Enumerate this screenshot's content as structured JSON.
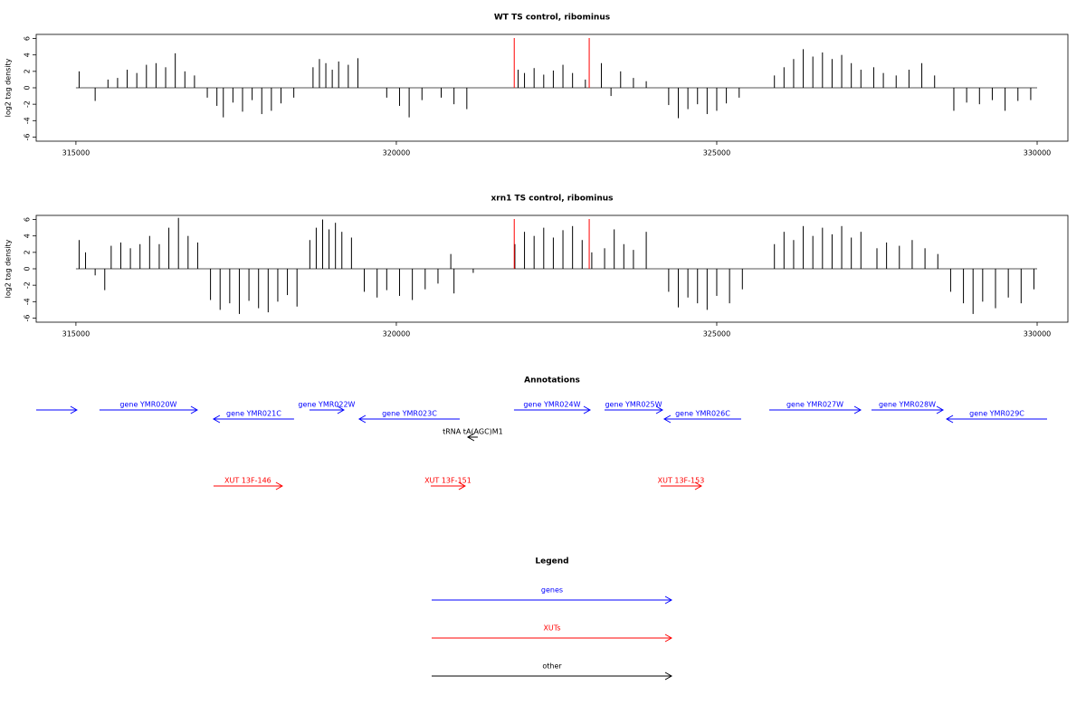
{
  "chart_data": [
    {
      "type": "needle",
      "title": "WT TS control, ribominus",
      "ylabel": "log2 tag density",
      "xlim": [
        314380,
        330480
      ],
      "xticks": [
        315000,
        320000,
        325000,
        330000
      ],
      "ylim": [
        -6.5,
        6.5
      ],
      "yticks": [
        -6,
        -4,
        -2,
        0,
        2,
        4,
        6
      ],
      "color": "#000000",
      "vlines": [
        321840,
        323010
      ],
      "vline_color": "#ff0000",
      "x": [
        315050,
        315300,
        315500,
        315650,
        315800,
        315950,
        316100,
        316250,
        316400,
        316550,
        316700,
        316850,
        317050,
        317200,
        317300,
        317450,
        317600,
        317750,
        317900,
        318050,
        318200,
        318400,
        318700,
        318800,
        318900,
        319000,
        319100,
        319250,
        319400,
        319850,
        320050,
        320200,
        320400,
        320700,
        320900,
        321100,
        321900,
        322000,
        322150,
        322300,
        322450,
        322600,
        322750,
        322950,
        323200,
        323350,
        323500,
        323700,
        323900,
        324250,
        324400,
        324550,
        324700,
        324850,
        325000,
        325150,
        325350,
        325900,
        326050,
        326200,
        326350,
        326500,
        326650,
        326800,
        326950,
        327100,
        327250,
        327450,
        327600,
        327800,
        328000,
        328200,
        328400,
        328700,
        328900,
        329100,
        329300,
        329500,
        329700,
        329900
      ],
      "values": [
        2.0,
        -1.6,
        1.0,
        1.2,
        2.2,
        1.8,
        2.8,
        3.0,
        2.5,
        4.2,
        2.0,
        1.5,
        -1.2,
        -2.2,
        -3.6,
        -1.8,
        -2.9,
        -1.5,
        -3.2,
        -2.8,
        -1.9,
        -1.2,
        2.5,
        3.5,
        3.0,
        2.2,
        3.2,
        2.8,
        3.6,
        -1.2,
        -2.2,
        -3.6,
        -1.5,
        -1.2,
        -2.0,
        -2.6,
        2.2,
        1.8,
        2.4,
        1.6,
        2.1,
        2.8,
        1.8,
        1.0,
        3.0,
        -1.0,
        2.0,
        1.2,
        0.8,
        -2.1,
        -3.7,
        -2.6,
        -2.0,
        -3.2,
        -2.8,
        -1.9,
        -1.2,
        1.5,
        2.5,
        3.5,
        4.7,
        3.8,
        4.3,
        3.5,
        4.0,
        3.0,
        2.2,
        2.5,
        1.8,
        1.5,
        2.2,
        3.0,
        1.5,
        -2.8,
        -1.8,
        -2.0,
        -1.5,
        -2.8,
        -1.6,
        -1.5
      ]
    },
    {
      "type": "needle",
      "title": "xrn1 TS control, ribominus",
      "ylabel": "log2 tag density",
      "xlim": [
        314380,
        330480
      ],
      "xticks": [
        315000,
        320000,
        325000,
        330000
      ],
      "ylim": [
        -6.5,
        6.5
      ],
      "yticks": [
        -6,
        -4,
        -2,
        0,
        2,
        4,
        6
      ],
      "color": "#000000",
      "vlines": [
        321840,
        323010
      ],
      "vline_color": "#ff0000",
      "x": [
        315050,
        315150,
        315300,
        315450,
        315550,
        315700,
        315850,
        316000,
        316150,
        316300,
        316450,
        316600,
        316750,
        316900,
        317100,
        317250,
        317400,
        317550,
        317700,
        317850,
        318000,
        318150,
        318300,
        318450,
        318650,
        318750,
        318850,
        318950,
        319050,
        319150,
        319300,
        319500,
        319700,
        319850,
        320050,
        320250,
        320450,
        320650,
        320850,
        320900,
        321200,
        321850,
        322000,
        322150,
        322300,
        322450,
        322600,
        322750,
        322900,
        323050,
        323250,
        323400,
        323550,
        323700,
        323900,
        324250,
        324400,
        324550,
        324700,
        324850,
        325000,
        325200,
        325400,
        325900,
        326050,
        326200,
        326350,
        326500,
        326650,
        326800,
        326950,
        327100,
        327250,
        327500,
        327650,
        327850,
        328050,
        328250,
        328450,
        328650,
        328850,
        329000,
        329150,
        329350,
        329550,
        329750,
        329950
      ],
      "values": [
        3.5,
        2.0,
        -0.8,
        -2.6,
        2.8,
        3.2,
        2.5,
        3.0,
        4.0,
        3.0,
        5.0,
        6.2,
        4.0,
        3.2,
        -3.8,
        -5.0,
        -4.2,
        -5.5,
        -3.9,
        -4.8,
        -5.3,
        -4.0,
        -3.2,
        -4.6,
        3.5,
        5.0,
        6.0,
        4.8,
        5.6,
        4.5,
        3.8,
        -2.8,
        -3.5,
        -2.6,
        -3.3,
        -3.8,
        -2.5,
        -1.8,
        1.8,
        -3.0,
        -0.5,
        3.0,
        4.5,
        4.0,
        5.0,
        3.8,
        4.7,
        5.2,
        3.5,
        2.0,
        2.5,
        4.8,
        3.0,
        2.3,
        4.5,
        -2.8,
        -4.7,
        -3.5,
        -4.2,
        -5.0,
        -3.3,
        -4.2,
        -2.5,
        3.0,
        4.5,
        3.5,
        5.2,
        4.0,
        5.0,
        4.2,
        5.2,
        3.8,
        4.5,
        2.5,
        3.2,
        2.8,
        3.5,
        2.5,
        1.8,
        -2.8,
        -4.2,
        -5.5,
        -4.0,
        -4.8,
        -3.5,
        -4.2,
        -2.5
      ]
    }
  ],
  "annotations": {
    "title": "Annotations",
    "groups": [
      {
        "features": [
          {
            "label": null,
            "start": 314380,
            "end": 315014,
            "strand": "+"
          },
          {
            "label": "gene YMR020W",
            "start": 315367,
            "end": 316893,
            "strand": "+"
          },
          {
            "label": "gene YMR021C",
            "start": 317147,
            "end": 318404,
            "strand": "-"
          },
          {
            "label": "gene YMR022W",
            "start": 318644,
            "end": 319181,
            "strand": "+"
          },
          {
            "label": "gene YMR023C",
            "start": 319421,
            "end": 320989,
            "strand": "-"
          },
          {
            "label": "gene YMR024W",
            "start": 321836,
            "end": 323023,
            "strand": "+"
          },
          {
            "label": "gene YMR025W",
            "start": 323249,
            "end": 324153,
            "strand": "+"
          },
          {
            "label": "gene YMR026C",
            "start": 324181,
            "end": 325381,
            "strand": "-"
          },
          {
            "label": "gene YMR027W",
            "start": 325819,
            "end": 327246,
            "strand": "+"
          },
          {
            "label": "gene YMR028W",
            "start": 327415,
            "end": 328531,
            "strand": "+"
          },
          {
            "label": "gene YMR029C",
            "start": 328588,
            "end": 330155,
            "strand": "-"
          }
        ]
      },
      {
        "features": [
          {
            "label": "XUT 13F-146",
            "start": 317147,
            "end": 318220,
            "strand": "+"
          },
          {
            "label": "XUT 13F-151",
            "start": 320537,
            "end": 321073,
            "strand": "+"
          },
          {
            "label": "XUT 13F-153",
            "start": 324124,
            "end": 324760,
            "strand": "+"
          }
        ]
      },
      {
        "features": [
          {
            "label": "tRNA tA(AGC)M1",
            "start": 321116,
            "end": 321271,
            "strand": "-"
          }
        ]
      }
    ]
  },
  "legend": {
    "title": "Legend",
    "entries": [
      {
        "label": "genes",
        "color": "#0000ff"
      },
      {
        "label": "XUTs",
        "color": "#ff0000"
      },
      {
        "label": "other",
        "color": "#000000"
      }
    ]
  }
}
